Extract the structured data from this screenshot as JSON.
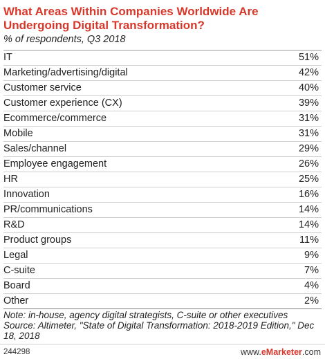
{
  "chart_data": {
    "type": "table",
    "title": "What Areas Within Companies Worldwide Are Undergoing Digital Transformation?",
    "subtitle": "% of respondents, Q3 2018",
    "rows": [
      {
        "label": "IT",
        "value": "51%"
      },
      {
        "label": "Marketing/advertising/digital",
        "value": "42%"
      },
      {
        "label": "Customer service",
        "value": "40%"
      },
      {
        "label": "Customer experience (CX)",
        "value": "39%"
      },
      {
        "label": "Ecommerce/commerce",
        "value": "31%"
      },
      {
        "label": "Mobile",
        "value": "31%"
      },
      {
        "label": "Sales/channel",
        "value": "29%"
      },
      {
        "label": "Employee engagement",
        "value": "26%"
      },
      {
        "label": "HR",
        "value": "25%"
      },
      {
        "label": "Innovation",
        "value": "16%"
      },
      {
        "label": "PR/communications",
        "value": "14%"
      },
      {
        "label": "R&D",
        "value": "14%"
      },
      {
        "label": "Product groups",
        "value": "11%"
      },
      {
        "label": "Legal",
        "value": "9%"
      },
      {
        "label": "C-suite",
        "value": "7%"
      },
      {
        "label": "Board",
        "value": "4%"
      },
      {
        "label": "Other",
        "value": "2%"
      }
    ],
    "note": "Note: in-house, agency digital strategists, C-suite or other executives",
    "source": "Source: Altimeter, \"State of Digital Transformation: 2018-2019 Edition,\" Dec 18, 2018"
  },
  "footer": {
    "chart_id": "244298",
    "brand_prefix": "www.",
    "brand_name": "eMarketer",
    "brand_suffix": ".com"
  },
  "colors": {
    "title": "#d8372b",
    "brand": "#d8372b"
  }
}
